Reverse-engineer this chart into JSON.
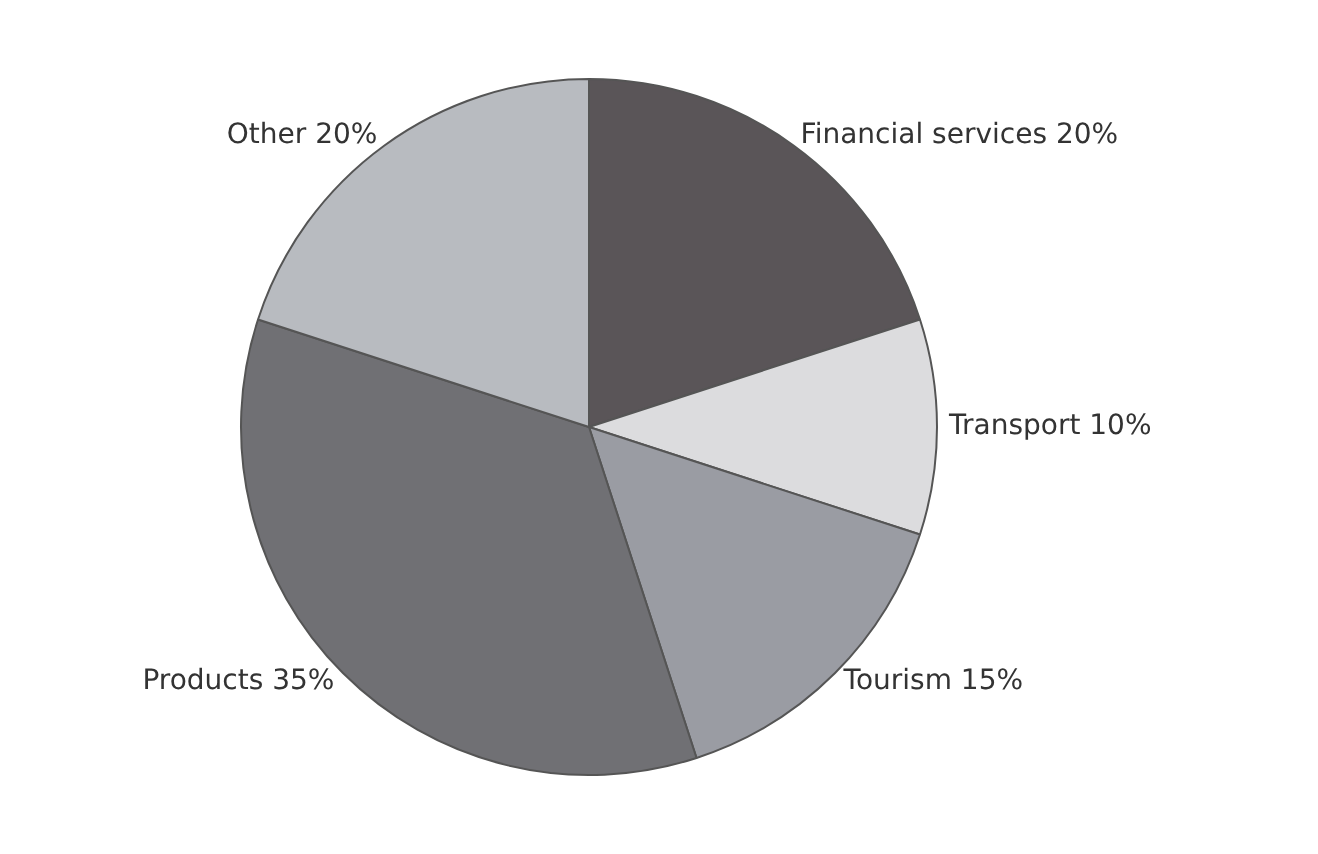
{
  "chart_data": {
    "type": "pie",
    "categories": [
      "Other",
      "Products",
      "Tourism",
      "Transport",
      "Financial services"
    ],
    "values": [
      20,
      35,
      15,
      10,
      20
    ],
    "value_labels": [
      "20%",
      "35%",
      "15%",
      "10%",
      "20%"
    ],
    "colors": [
      "#b8bbc0",
      "#707074",
      "#9a9ca3",
      "#dcdcde",
      "#5a5558"
    ],
    "legend": false
  }
}
